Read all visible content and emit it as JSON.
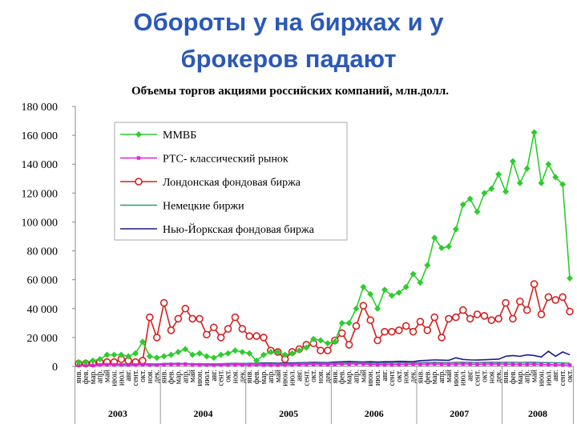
{
  "header": {
    "title_lines": [
      "Обороты у на биржах и у",
      "брокеров падают"
    ]
  },
  "chart_data": {
    "type": "line",
    "title": "Объемы торгов акциями российских компаний, млн.долл.",
    "category_groups": [
      {
        "name": "2003",
        "categories": [
          "янв.",
          "фев.",
          "мар.",
          "апр.",
          "май",
          "июн.",
          "июл.",
          "авг.",
          "сент.",
          "окт.",
          "ноя.",
          "дек."
        ]
      },
      {
        "name": "2004",
        "categories": [
          "янв.",
          "фев.",
          "мар.",
          "апр.",
          "май",
          "июн.",
          "июл.",
          "авг.",
          "сент.",
          "окт.",
          "ноя.",
          "дек."
        ]
      },
      {
        "name": "2005",
        "categories": [
          "янв.",
          "фев.",
          "мар.",
          "апр.",
          "май",
          "июн.",
          "июл.",
          "авг.",
          "сент.",
          "окт.",
          "ноя.",
          "дек."
        ]
      },
      {
        "name": "2006",
        "categories": [
          "янв.",
          "фев.",
          "мар.",
          "апр.",
          "май",
          "июн.",
          "июл.",
          "авг.",
          "сент.",
          "окт.",
          "ноя.",
          "дек."
        ]
      },
      {
        "name": "2007",
        "categories": [
          "янв.",
          "фев.",
          "мар.",
          "апр.",
          "май",
          "июн.",
          "июл.",
          "авг.",
          "сент.",
          "окт.",
          "ноя.",
          "дек."
        ]
      },
      {
        "name": "2008",
        "categories": [
          "янв.",
          "фев.",
          "мар.",
          "апр.",
          "май",
          "июн.",
          "июл.",
          "авг.",
          "сент.",
          "окт."
        ]
      }
    ],
    "ylim": [
      0,
      180000
    ],
    "yticks": [
      0,
      {
        "value": 20000,
        "label": "20 000"
      },
      {
        "value": 40000,
        "label": "40 000"
      },
      {
        "value": 60000,
        "label": "60 000"
      },
      {
        "value": 80000,
        "label": "80 000"
      },
      {
        "value": 100000,
        "label": "100 000"
      },
      {
        "value": 120000,
        "label": "120 000"
      },
      {
        "value": 140000,
        "label": "140 000"
      },
      {
        "value": 160000,
        "label": "160 000"
      },
      {
        "value": 180000,
        "label": "180 000"
      }
    ],
    "series": [
      {
        "name": "ММВБ",
        "color": "#2ecc2e",
        "marker": "diamond",
        "values": [
          3000,
          3000,
          4000,
          5000,
          8000,
          8000,
          8000,
          7000,
          9000,
          17000,
          7000,
          6000,
          7000,
          8000,
          10000,
          12000,
          8000,
          9000,
          7000,
          6000,
          8000,
          9000,
          11000,
          10000,
          9000,
          4000,
          8000,
          10000,
          10000,
          8000,
          9000,
          11000,
          13000,
          19000,
          18000,
          16000,
          17000,
          30000,
          30000,
          40000,
          55000,
          50000,
          40000,
          53000,
          49000,
          51000,
          55000,
          64000,
          58000,
          70000,
          89000,
          82000,
          83000,
          95000,
          112000,
          116000,
          107000,
          120000,
          123000,
          133000,
          121000,
          142000,
          127000,
          137000,
          162000,
          127000,
          140000,
          131000,
          126000,
          61000
        ]
      },
      {
        "name": "РТС- классический рынок",
        "color": "#e020e0",
        "marker": "square",
        "values": [
          800,
          900,
          700,
          1000,
          1200,
          1100,
          1000,
          900,
          1000,
          1200,
          1000,
          900,
          1300,
          1400,
          1500,
          1600,
          1200,
          1100,
          1000,
          900,
          1000,
          1100,
          1200,
          1100,
          1000,
          1100,
          1000,
          900,
          900,
          1000,
          1100,
          1200,
          1400,
          1500,
          1400,
          1300,
          1500,
          1700,
          1600,
          1800,
          1700,
          1400,
          1200,
          1300,
          1300,
          1400,
          1500,
          1600,
          1500,
          1600,
          1700,
          1600,
          1500,
          1600,
          1700,
          1600,
          1500,
          1600,
          1700,
          1600,
          1600,
          1500,
          1400,
          1500,
          1600,
          1400,
          1300,
          1100,
          1000,
          900
        ]
      },
      {
        "name": "Лондонская фондовая биржа",
        "color": "#d42020",
        "marker": "circle",
        "values": [
          2000,
          2000,
          2000,
          3000,
          3000,
          3000,
          5000,
          4000,
          3000,
          4000,
          34000,
          20000,
          44000,
          25000,
          33000,
          40000,
          33000,
          33000,
          22000,
          27000,
          20000,
          26000,
          34000,
          26000,
          21000,
          21000,
          20000,
          11000,
          10000,
          5000,
          10000,
          12000,
          15000,
          16000,
          11000,
          11000,
          18000,
          23000,
          15000,
          28000,
          42000,
          32000,
          18000,
          24000,
          24000,
          25000,
          28000,
          24000,
          31000,
          25000,
          34000,
          20000,
          33000,
          34000,
          39000,
          33000,
          36000,
          35000,
          32000,
          33000,
          44000,
          33000,
          45000,
          39000,
          57000,
          36000,
          48000,
          46000,
          48000,
          38000
        ]
      },
      {
        "name": "Немецкие биржи",
        "color": "#2a9a7a",
        "marker": "none",
        "values": [
          1500,
          1500,
          1600,
          1700,
          1600,
          1500,
          1600,
          1700,
          1800,
          1900,
          1800,
          1700,
          2000,
          2100,
          2000,
          1900,
          1800,
          1700,
          1800,
          1700,
          1800,
          1900,
          2000,
          1900,
          2000,
          2100,
          2000,
          1900,
          1800,
          1900,
          2000,
          2100,
          2200,
          2300,
          2200,
          2100,
          2400,
          2600,
          2500,
          2700,
          2600,
          2300,
          2200,
          2300,
          2400,
          2500,
          2600,
          2500,
          2600,
          2700,
          2800,
          2700,
          2600,
          2800,
          2900,
          2800,
          2700,
          2800,
          2900,
          2800,
          2900,
          2800,
          2700,
          2800,
          2900,
          2700,
          2600,
          2500,
          2400,
          2200
        ]
      },
      {
        "name": "Нью-Йоркская фондовая биржа",
        "color": "#1a1a8c",
        "marker": "none",
        "values": [
          1000,
          1100,
          1200,
          1200,
          1300,
          1300,
          1400,
          1300,
          1400,
          1500,
          1400,
          1500,
          1700,
          1800,
          1900,
          1800,
          1700,
          1800,
          1700,
          1600,
          1800,
          2000,
          2100,
          2000,
          2100,
          2200,
          2400,
          2300,
          2200,
          2300,
          2400,
          2500,
          2600,
          2800,
          2700,
          2600,
          3000,
          3200,
          3400,
          3200,
          3100,
          3300,
          3000,
          3200,
          3300,
          3500,
          3400,
          3300,
          4000,
          4200,
          4500,
          4300,
          4200,
          6000,
          4800,
          4500,
          4400,
          4600,
          4800,
          5000,
          7000,
          7500,
          7000,
          8000,
          7500,
          6500,
          10500,
          7000,
          10000,
          8000
        ]
      }
    ]
  }
}
